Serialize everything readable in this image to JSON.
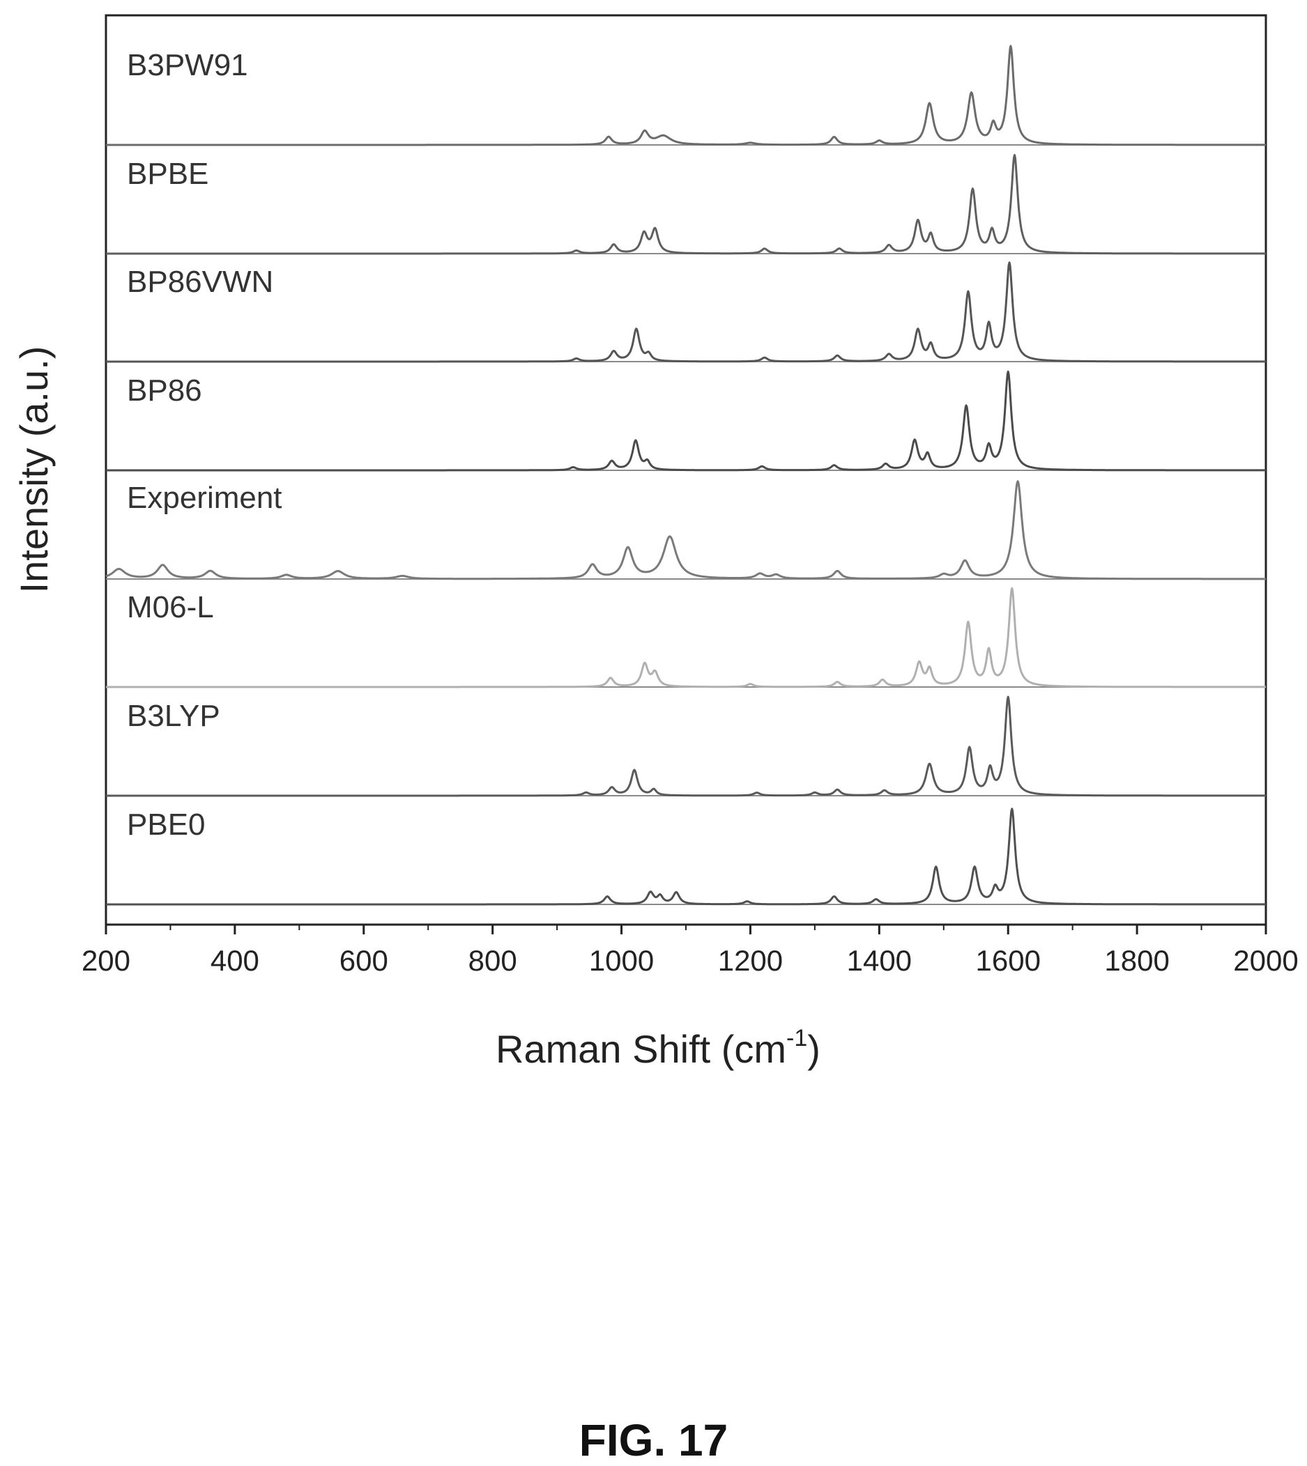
{
  "figure_caption": "FIG. 17",
  "chart_data": {
    "type": "line",
    "title": "",
    "xlabel": "Raman Shift (cm",
    "xlabel_sup": "-1",
    "xlabel_close": ")",
    "ylabel": "Intensity (a.u.)",
    "xlim": [
      200,
      2000
    ],
    "x_ticks": [
      200,
      400,
      600,
      800,
      1000,
      1200,
      1400,
      1600,
      1800,
      2000
    ],
    "x_tick_labels": [
      "200",
      "400",
      "600",
      "800",
      "1000",
      "1200",
      "1400",
      "1600",
      "1800",
      "2000"
    ],
    "y_ticks_shown": false,
    "stacked": true,
    "grid": false,
    "legend": "inline labels at left of each trace",
    "series": [
      {
        "name": "B3PW91",
        "color": "#6b6b6b",
        "peaks": [
          [
            980,
            0.08,
            6
          ],
          [
            1036,
            0.13,
            7
          ],
          [
            1065,
            0.09,
            14
          ],
          [
            1200,
            0.02,
            10
          ],
          [
            1330,
            0.08,
            6
          ],
          [
            1400,
            0.04,
            6
          ],
          [
            1478,
            0.42,
            7
          ],
          [
            1543,
            0.52,
            7
          ],
          [
            1577,
            0.18,
            5
          ],
          [
            1604,
            1.0,
            6
          ]
        ]
      },
      {
        "name": "BPBE",
        "color": "#5f5f5f",
        "peaks": [
          [
            930,
            0.03,
            6
          ],
          [
            988,
            0.09,
            6
          ],
          [
            1035,
            0.2,
            6
          ],
          [
            1052,
            0.24,
            6
          ],
          [
            1222,
            0.05,
            6
          ],
          [
            1338,
            0.05,
            6
          ],
          [
            1415,
            0.08,
            6
          ],
          [
            1460,
            0.33,
            6
          ],
          [
            1480,
            0.18,
            5
          ],
          [
            1545,
            0.65,
            6
          ],
          [
            1575,
            0.21,
            5
          ],
          [
            1610,
            1.0,
            6
          ]
        ]
      },
      {
        "name": "BP86VWN",
        "color": "#555555",
        "peaks": [
          [
            930,
            0.03,
            6
          ],
          [
            988,
            0.1,
            6
          ],
          [
            1023,
            0.33,
            6
          ],
          [
            1042,
            0.07,
            5
          ],
          [
            1222,
            0.04,
            6
          ],
          [
            1335,
            0.06,
            6
          ],
          [
            1415,
            0.07,
            6
          ],
          [
            1460,
            0.32,
            6
          ],
          [
            1480,
            0.16,
            5
          ],
          [
            1538,
            0.7,
            6
          ],
          [
            1570,
            0.35,
            5
          ],
          [
            1602,
            1.0,
            6
          ]
        ]
      },
      {
        "name": "BP86",
        "color": "#4b4b4b",
        "peaks": [
          [
            925,
            0.03,
            6
          ],
          [
            985,
            0.09,
            6
          ],
          [
            1022,
            0.3,
            6
          ],
          [
            1040,
            0.08,
            5
          ],
          [
            1218,
            0.04,
            6
          ],
          [
            1330,
            0.05,
            6
          ],
          [
            1410,
            0.06,
            6
          ],
          [
            1455,
            0.3,
            6
          ],
          [
            1475,
            0.15,
            5
          ],
          [
            1535,
            0.65,
            6
          ],
          [
            1570,
            0.22,
            5
          ],
          [
            1600,
            1.0,
            6
          ]
        ]
      },
      {
        "name": "Experiment",
        "color": "#7a7a7a",
        "peaks": [
          [
            220,
            0.1,
            12
          ],
          [
            288,
            0.14,
            10
          ],
          [
            362,
            0.08,
            10
          ],
          [
            480,
            0.04,
            10
          ],
          [
            560,
            0.08,
            12
          ],
          [
            660,
            0.03,
            12
          ],
          [
            955,
            0.14,
            8
          ],
          [
            1010,
            0.31,
            9
          ],
          [
            1075,
            0.43,
            12
          ],
          [
            1215,
            0.05,
            8
          ],
          [
            1240,
            0.04,
            8
          ],
          [
            1335,
            0.08,
            7
          ],
          [
            1500,
            0.04,
            8
          ],
          [
            1533,
            0.18,
            8
          ],
          [
            1615,
            1.0,
            8
          ]
        ]
      },
      {
        "name": "M06-L",
        "color": "#b0b0b0",
        "peaks": [
          [
            983,
            0.09,
            6
          ],
          [
            1036,
            0.23,
            6
          ],
          [
            1052,
            0.14,
            6
          ],
          [
            1200,
            0.03,
            6
          ],
          [
            1335,
            0.05,
            6
          ],
          [
            1405,
            0.07,
            6
          ],
          [
            1462,
            0.24,
            6
          ],
          [
            1478,
            0.17,
            5
          ],
          [
            1538,
            0.65,
            6
          ],
          [
            1570,
            0.35,
            5
          ],
          [
            1606,
            1.0,
            6
          ]
        ]
      },
      {
        "name": "B3LYP",
        "color": "#5a5a5a",
        "peaks": [
          [
            945,
            0.03,
            6
          ],
          [
            985,
            0.08,
            6
          ],
          [
            1020,
            0.26,
            6
          ],
          [
            1050,
            0.06,
            5
          ],
          [
            1210,
            0.03,
            6
          ],
          [
            1300,
            0.03,
            6
          ],
          [
            1335,
            0.06,
            6
          ],
          [
            1408,
            0.05,
            6
          ],
          [
            1478,
            0.32,
            7
          ],
          [
            1540,
            0.48,
            6
          ],
          [
            1572,
            0.25,
            5
          ],
          [
            1600,
            1.0,
            6
          ]
        ]
      },
      {
        "name": "PBE0",
        "color": "#505050",
        "peaks": [
          [
            978,
            0.08,
            6
          ],
          [
            1045,
            0.12,
            6
          ],
          [
            1060,
            0.08,
            5
          ],
          [
            1085,
            0.12,
            6
          ],
          [
            1195,
            0.03,
            6
          ],
          [
            1330,
            0.08,
            6
          ],
          [
            1395,
            0.05,
            6
          ],
          [
            1488,
            0.38,
            6
          ],
          [
            1548,
            0.37,
            6
          ],
          [
            1580,
            0.14,
            5
          ],
          [
            1606,
            0.97,
            6
          ]
        ]
      }
    ]
  }
}
